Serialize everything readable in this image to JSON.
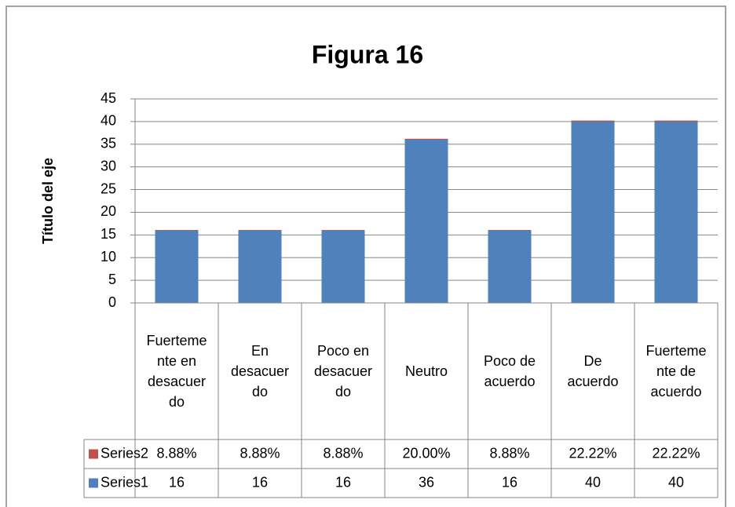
{
  "chart_data": {
    "type": "stacked-bar",
    "title": "Figura 16",
    "y_label": "Título del eje",
    "categories": [
      "Fuertemente en desacuerdo",
      "En desacuerdo",
      "Poco en desacuerdo",
      "Neutro",
      "Poco de acuerdo",
      "De acuerdo",
      "Fuertemente de acuerdo"
    ],
    "series": [
      {
        "name": "Series1",
        "color": "#4f81bd",
        "values": [
          16,
          16,
          16,
          36,
          16,
          40,
          40
        ]
      },
      {
        "name": "Series2",
        "color": "#c0504d",
        "values": [
          0.0888,
          0.0888,
          0.0888,
          0.2,
          0.0888,
          0.2222,
          0.2222
        ],
        "value_labels": [
          "8.88%",
          "8.88%",
          "8.88%",
          "20.00%",
          "8.88%",
          "22.22%",
          "22.22%"
        ]
      }
    ],
    "ylim": [
      0,
      45
    ],
    "yticks": [
      0,
      5,
      10,
      15,
      20,
      25,
      30,
      35,
      40,
      45
    ],
    "grid": true
  }
}
